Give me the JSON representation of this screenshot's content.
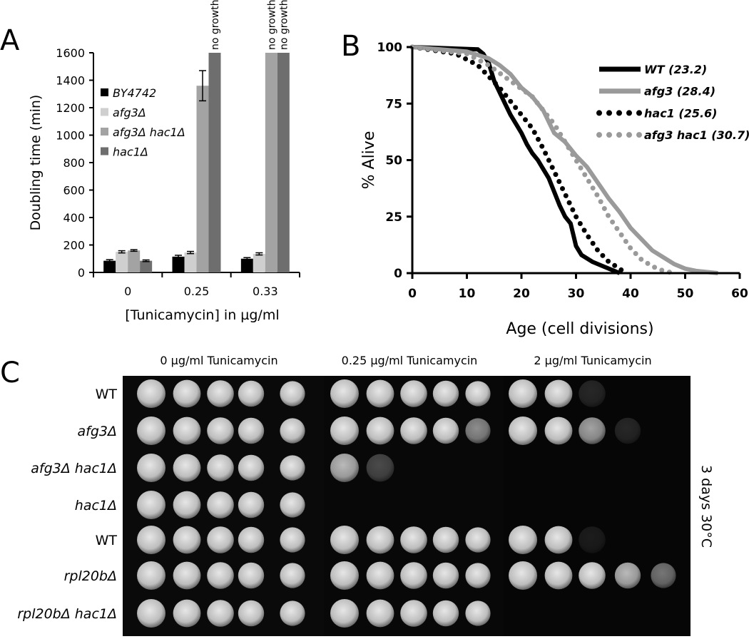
{
  "panel_labels": [
    "A",
    "B",
    "C"
  ],
  "chart_data": [
    {
      "type": "bar",
      "ylabel": "Doubling time (min)",
      "xlabel": "[Tunicamycin] in µg/ml",
      "categories": [
        "0",
        "0.25",
        "0.33"
      ],
      "series": [
        {
          "name": "BY4742",
          "color": "#000000",
          "values": [
            85,
            115,
            100
          ],
          "errors": [
            8,
            10,
            8
          ]
        },
        {
          "name": "afg3Δ",
          "color": "#cfcfcf",
          "values": [
            150,
            145,
            135
          ],
          "errors": [
            8,
            8,
            8
          ]
        },
        {
          "name": "afg3Δ hac1Δ",
          "color": "#a3a3a3",
          "values": [
            160,
            1360,
            1600
          ],
          "errors": [
            6,
            110,
            null
          ]
        },
        {
          "name": "hac1Δ",
          "color": "#6e6e6e",
          "values": [
            85,
            1600,
            1600
          ],
          "errors": [
            6,
            null,
            null
          ]
        }
      ],
      "annotations": [
        {
          "text": "no growth",
          "series": 3,
          "category": 1
        },
        {
          "text": "no growth",
          "series": 2,
          "category": 2
        },
        {
          "text": "no growth",
          "series": 3,
          "category": 2
        }
      ],
      "ylim": [
        0,
        1600
      ],
      "yticks": [
        0,
        200,
        400,
        600,
        800,
        1000,
        1200,
        1400,
        1600
      ],
      "legend": "upper-left"
    },
    {
      "type": "line",
      "ylabel": "% Alive",
      "xlabel": "Age (cell divisions)",
      "legend": "upper-right",
      "xlim": [
        0,
        60
      ],
      "xticks": [
        0,
        10,
        20,
        30,
        40,
        50,
        60
      ],
      "ylim": [
        0,
        100
      ],
      "yticks": [
        0,
        25,
        50,
        75,
        100
      ],
      "series": [
        {
          "name": "WT (23.2)",
          "color": "#000000",
          "style": "solid",
          "x": [
            0,
            12,
            13,
            14,
            15,
            16,
            17,
            18,
            19,
            20,
            21,
            22,
            23,
            24,
            25,
            26,
            27,
            28,
            29,
            29.5,
            30,
            31,
            33,
            35,
            37,
            38
          ],
          "values": [
            100,
            99,
            97,
            93,
            85,
            80,
            75,
            70,
            66,
            62,
            57,
            53,
            50,
            46,
            42,
            36,
            30,
            25,
            22,
            17,
            12,
            8,
            5,
            3,
            1,
            0
          ]
        },
        {
          "name": "afg3 (28.4)",
          "color": "#9a9a9a",
          "style": "solid",
          "x": [
            0,
            10,
            14,
            16,
            18,
            20,
            22,
            24,
            26,
            28,
            30,
            32,
            34,
            36,
            38,
            40,
            42,
            44,
            46,
            48,
            50,
            52,
            56
          ],
          "values": [
            100,
            98,
            95,
            92,
            88,
            82,
            78,
            72,
            62,
            58,
            52,
            47,
            40,
            33,
            27,
            20,
            15,
            10,
            7,
            4,
            2,
            1,
            0
          ]
        },
        {
          "name": "hac1 (25.6)",
          "color": "#000000",
          "style": "dotted",
          "x": [
            0,
            8,
            12,
            14,
            16,
            18,
            20,
            22,
            24,
            26,
            28,
            30,
            32,
            34,
            36,
            38,
            39
          ],
          "values": [
            100,
            97,
            92,
            87,
            82,
            76,
            70,
            64,
            55,
            45,
            35,
            25,
            17,
            10,
            5,
            2,
            0
          ]
        },
        {
          "name": "afg3 hac1 (30.7)",
          "color": "#9a9a9a",
          "style": "dotted",
          "x": [
            0,
            10,
            14,
            18,
            22,
            24,
            26,
            28,
            30,
            32,
            34,
            36,
            38,
            40,
            42,
            44,
            46,
            48
          ],
          "values": [
            100,
            97,
            92,
            85,
            78,
            72,
            66,
            58,
            50,
            42,
            34,
            25,
            18,
            11,
            6,
            3,
            1,
            0
          ]
        }
      ]
    }
  ],
  "plate": {
    "columns": [
      "0 µg/ml Tunicamycin",
      "0.25 µg/ml Tunicamycin",
      "2 µg/ml Tunicamycin"
    ],
    "rows": [
      "WT",
      "afg3Δ",
      "afg3Δ hac1Δ",
      "hac1Δ",
      "WT",
      "rpl20bΔ",
      "rpl20bΔ hac1Δ"
    ],
    "condition": "3 days 30°C"
  }
}
